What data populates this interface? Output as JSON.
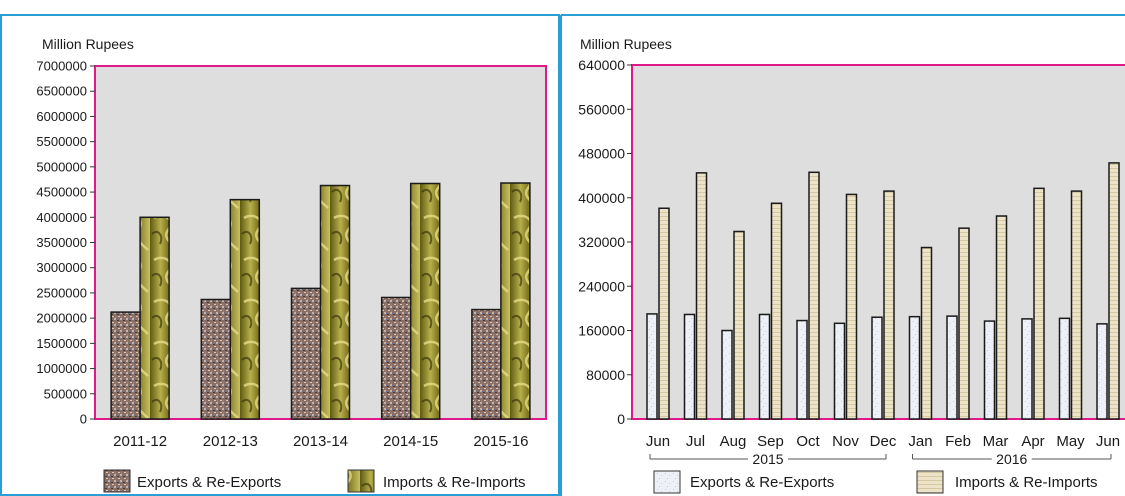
{
  "colors": {
    "frame": "#2a9fd6",
    "plot_border": "#e0198a",
    "plot_bg": "#dedede",
    "exports_fill_left": "#8a6a64",
    "imports_fill_left": "#8c8530",
    "exports_fill_right": "#e8ecf5",
    "imports_fill_right": "#e6dcc0"
  },
  "chart_data": [
    {
      "type": "bar",
      "ylabel": "Million Rupees",
      "ylim": [
        0,
        7000000
      ],
      "yticks": [
        "7000000",
        "6500000",
        "6000000",
        "5500000",
        "5000000",
        "4500000",
        "4000000",
        "3500000",
        "3000000",
        "2500000",
        "2000000",
        "1500000",
        "1000000",
        "500000",
        "0"
      ],
      "categories": [
        "2011-12",
        "2012-13",
        "2013-14",
        "2014-15",
        "2015-16"
      ],
      "series": [
        {
          "name": "Exports & Re-Exports",
          "values": [
            2120000,
            2370000,
            2590000,
            2410000,
            2170000
          ]
        },
        {
          "name": "Imports & Re-Imports",
          "values": [
            4000000,
            4350000,
            4630000,
            4670000,
            4680000
          ]
        }
      ],
      "legend": "bottom",
      "grid": false
    },
    {
      "type": "bar",
      "ylabel": "Million Rupees",
      "ylim": [
        0,
        640000
      ],
      "yticks": [
        "640000",
        "560000",
        "480000",
        "400000",
        "320000",
        "240000",
        "160000",
        "80000",
        "0"
      ],
      "categories": [
        "Jun",
        "Jul",
        "Aug",
        "Sep",
        "Oct",
        "Nov",
        "Dec",
        "Jan",
        "Feb",
        "Mar",
        "Apr",
        "May",
        "Jun"
      ],
      "groups": [
        {
          "label": "2015",
          "start": 0,
          "end": 6
        },
        {
          "label": "2016",
          "start": 7,
          "end": 12
        }
      ],
      "series": [
        {
          "name": "Exports & Re-Exports",
          "values": [
            190000,
            189000,
            160000,
            189000,
            178000,
            173000,
            184000,
            185000,
            186000,
            177000,
            181000,
            182000,
            172000
          ]
        },
        {
          "name": "Imports & Re-Imports",
          "values": [
            381000,
            445000,
            339000,
            390000,
            446000,
            406000,
            412000,
            310000,
            345000,
            367000,
            417000,
            412000,
            463000
          ]
        }
      ],
      "legend": "bottom",
      "grid": false
    }
  ]
}
